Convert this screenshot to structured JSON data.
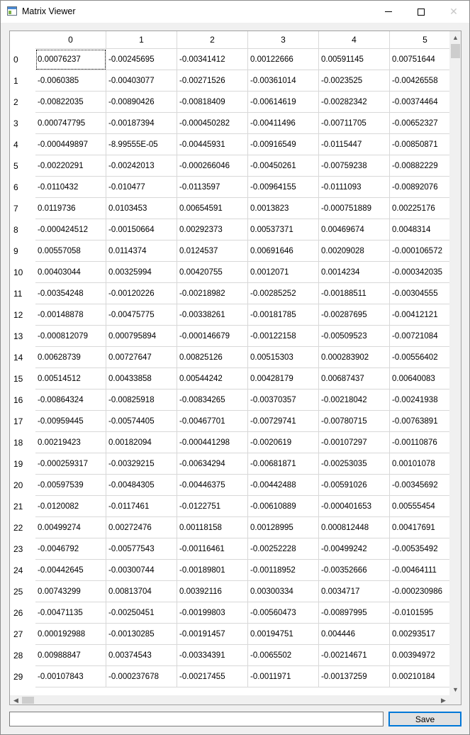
{
  "window": {
    "title": "Matrix Viewer",
    "icon": "matrix-viewer-app-icon",
    "controls": {
      "minimize_icon": "minimize-icon",
      "maximize_icon": "maximize-icon",
      "close_icon": "close-icon"
    }
  },
  "grid": {
    "column_headers": [
      "0",
      "1",
      "2",
      "3",
      "4",
      "5"
    ],
    "row_headers": [
      "0",
      "1",
      "2",
      "3",
      "4",
      "5",
      "6",
      "7",
      "8",
      "9",
      "10",
      "11",
      "12",
      "13",
      "14",
      "15",
      "16",
      "17",
      "18",
      "19",
      "20",
      "21",
      "22",
      "23",
      "24",
      "25",
      "26",
      "27",
      "28",
      "29"
    ],
    "selected_cell": {
      "row": 0,
      "col": 0
    },
    "rows": [
      [
        "0.00076237",
        "-0.00245695",
        "-0.00341412",
        "0.00122666",
        "0.00591145",
        "0.00751644"
      ],
      [
        "-0.0060385",
        "-0.00403077",
        "-0.00271526",
        "-0.00361014",
        "-0.0023525",
        "-0.00426558"
      ],
      [
        "-0.00822035",
        "-0.00890426",
        "-0.00818409",
        "-0.00614619",
        "-0.00282342",
        "-0.00374464"
      ],
      [
        "0.000747795",
        "-0.00187394",
        "-0.000450282",
        "-0.00411496",
        "-0.00711705",
        "-0.00652327"
      ],
      [
        "-0.000449897",
        "-8.99555E-05",
        "-0.00445931",
        "-0.00916549",
        "-0.0115447",
        "-0.00850871"
      ],
      [
        "-0.00220291",
        "-0.00242013",
        "-0.000266046",
        "-0.00450261",
        "-0.00759238",
        "-0.00882229"
      ],
      [
        "-0.0110432",
        "-0.010477",
        "-0.0113597",
        "-0.00964155",
        "-0.0111093",
        "-0.00892076"
      ],
      [
        "0.0119736",
        "0.0103453",
        "0.00654591",
        "0.0013823",
        "-0.000751889",
        "0.00225176"
      ],
      [
        "-0.000424512",
        "-0.00150664",
        "0.00292373",
        "0.00537371",
        "0.00469674",
        "0.0048314"
      ],
      [
        "0.00557058",
        "0.0114374",
        "0.0124537",
        "0.00691646",
        "0.00209028",
        "-0.000106572"
      ],
      [
        "0.00403044",
        "0.00325994",
        "0.00420755",
        "0.0012071",
        "0.0014234",
        "-0.000342035"
      ],
      [
        "-0.00354248",
        "-0.00120226",
        "-0.00218982",
        "-0.00285252",
        "-0.00188511",
        "-0.00304555"
      ],
      [
        "-0.00148878",
        "-0.00475775",
        "-0.00338261",
        "-0.00181785",
        "-0.00287695",
        "-0.00412121"
      ],
      [
        "-0.000812079",
        "0.000795894",
        "-0.000146679",
        "-0.00122158",
        "-0.00509523",
        "-0.00721084"
      ],
      [
        "0.00628739",
        "0.00727647",
        "0.00825126",
        "0.00515303",
        "0.000283902",
        "-0.00556402"
      ],
      [
        "0.00514512",
        "0.00433858",
        "0.00544242",
        "0.00428179",
        "0.00687437",
        "0.00640083"
      ],
      [
        "-0.00864324",
        "-0.00825918",
        "-0.00834265",
        "-0.00370357",
        "-0.00218042",
        "-0.00241938"
      ],
      [
        "-0.00959445",
        "-0.00574405",
        "-0.00467701",
        "-0.00729741",
        "-0.00780715",
        "-0.00763891"
      ],
      [
        "0.00219423",
        "0.00182094",
        "-0.000441298",
        "-0.0020619",
        "-0.00107297",
        "-0.00110876"
      ],
      [
        "-0.000259317",
        "-0.00329215",
        "-0.00634294",
        "-0.00681871",
        "-0.00253035",
        "0.00101078"
      ],
      [
        "-0.00597539",
        "-0.00484305",
        "-0.00446375",
        "-0.00442488",
        "-0.00591026",
        "-0.00345692"
      ],
      [
        "-0.0120082",
        "-0.0117461",
        "-0.0122751",
        "-0.00610889",
        "-0.000401653",
        "0.00555454"
      ],
      [
        "0.00499274",
        "0.00272476",
        "0.00118158",
        "0.00128995",
        "0.000812448",
        "0.00417691"
      ],
      [
        "-0.0046792",
        "-0.00577543",
        "-0.00116461",
        "-0.00252228",
        "-0.00499242",
        "-0.00535492"
      ],
      [
        "-0.00442645",
        "-0.00300744",
        "-0.00189801",
        "-0.00118952",
        "-0.00352666",
        "-0.00464111"
      ],
      [
        "0.00743299",
        "0.00813704",
        "0.00392116",
        "0.00300334",
        "0.0034717",
        "-0.000230986"
      ],
      [
        "-0.00471135",
        "-0.00250451",
        "-0.00199803",
        "-0.00560473",
        "-0.00897995",
        "-0.0101595"
      ],
      [
        "0.000192988",
        "-0.00130285",
        "-0.00191457",
        "0.00194751",
        "0.004446",
        "0.00293517"
      ],
      [
        "0.00988847",
        "0.00374543",
        "-0.00334391",
        "-0.0065502",
        "-0.00214671",
        "0.00394972"
      ],
      [
        "-0.00107843",
        "-0.000237678",
        "-0.00217455",
        "-0.0011971",
        "-0.00137259",
        "0.00210184"
      ]
    ]
  },
  "scrollbars": {
    "up_icon": "scroll-up-arrow-icon",
    "down_icon": "scroll-down-arrow-icon",
    "left_icon": "scroll-left-arrow-icon",
    "right_icon": "scroll-right-arrow-icon"
  },
  "footer": {
    "input_value": "",
    "save_label": "Save"
  }
}
